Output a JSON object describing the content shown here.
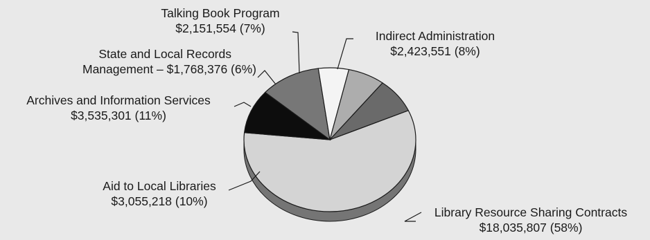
{
  "chart_data": {
    "type": "pie",
    "style": "3d",
    "title": "",
    "slices": [
      {
        "label_line1": "Library Resource Sharing Contracts",
        "label_line2": "$18,035,807 (58%)",
        "value": 18035807,
        "percent": 58,
        "color": "#d4d4d4"
      },
      {
        "label_line1": "Aid to Local Libraries",
        "label_line2": "$3,055,218 (10%)",
        "value": 3055218,
        "percent": 10,
        "color": "#0d0d0d"
      },
      {
        "label_line1": "Archives and Information Services",
        "label_line2": "$3,535,301 (11%)",
        "value": 3535301,
        "percent": 11,
        "color": "#777777"
      },
      {
        "label_line1": "State and Local Records",
        "label_line2": "Management – $1,768,376 (6%)",
        "value": 1768376,
        "percent": 6,
        "color": "#f4f4f4"
      },
      {
        "label_line1": "Talking Book Program",
        "label_line2": "$2,151,554 (7%)",
        "value": 2151554,
        "percent": 7,
        "color": "#adadad"
      },
      {
        "label_line1": "Indirect Administration",
        "label_line2": "$2,423,551 (8%)",
        "value": 2423551,
        "percent": 8,
        "color": "#6a6a6a"
      }
    ]
  }
}
